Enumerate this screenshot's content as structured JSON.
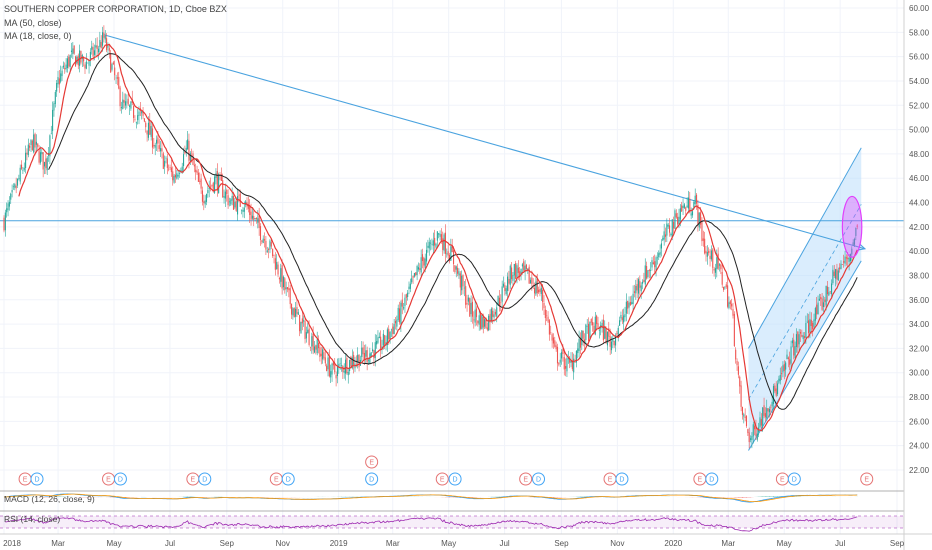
{
  "legend": {
    "title": "SOUTHERN COPPER CORPORATION, 1D, Cboe BZX",
    "ma50": "MA (50, close)",
    "ma18": "MA (18, close, 0)",
    "macd": "MACD (12, 26, close, 9)",
    "rsi": "RSI (14, close)"
  },
  "colors": {
    "up": "#26a69a",
    "down": "#ef5350",
    "ma50": "#222222",
    "ma18": "#e53935",
    "trend": "#4aa3df",
    "channel_fill": "#bbdefb",
    "circle": "#e040fb",
    "rsi": "#9c27b0",
    "earnings": "#e57373",
    "dividend": "#42a5f5"
  },
  "chart_data": {
    "type": "candlestick",
    "y_axis": {
      "ticks": [
        "22.00",
        "24.00",
        "26.00",
        "28.00",
        "30.00",
        "32.00",
        "34.00",
        "36.00",
        "38.00",
        "40.00",
        "42.00",
        "44.00",
        "46.00",
        "48.00",
        "50.00",
        "52.00",
        "54.00",
        "56.00",
        "58.00",
        "60.00"
      ],
      "range": [
        22,
        60
      ],
      "side": "right"
    },
    "x_axis": {
      "ticks": [
        "2018",
        "Mar",
        "May",
        "Jul",
        "Sep",
        "Nov",
        "2019",
        "Mar",
        "May",
        "Jul",
        "Sep",
        "Nov",
        "2020",
        "Mar",
        "May",
        "Jul",
        "Sep"
      ]
    },
    "price_path": [
      [
        "2018-01-01",
        42.5
      ],
      [
        "2018-02-01",
        49
      ],
      [
        "2018-02-15",
        47
      ],
      [
        "2018-03-01",
        54
      ],
      [
        "2018-03-15",
        56
      ],
      [
        "2018-04-01",
        55.5
      ],
      [
        "2018-04-20",
        57.5
      ],
      [
        "2018-05-10",
        52
      ],
      [
        "2018-06-01",
        51
      ],
      [
        "2018-06-20",
        48
      ],
      [
        "2018-07-05",
        46
      ],
      [
        "2018-07-20",
        48.5
      ],
      [
        "2018-08-05",
        44.5
      ],
      [
        "2018-08-20",
        46
      ],
      [
        "2018-09-05",
        44
      ],
      [
        "2018-09-20",
        44
      ],
      [
        "2018-10-05",
        42
      ],
      [
        "2018-10-20",
        40
      ],
      [
        "2018-11-05",
        36.5
      ],
      [
        "2018-11-20",
        34
      ],
      [
        "2018-12-05",
        32.5
      ],
      [
        "2018-12-25",
        30
      ],
      [
        "2019-01-15",
        31
      ],
      [
        "2019-02-01",
        31.5
      ],
      [
        "2019-02-20",
        32.5
      ],
      [
        "2019-03-10",
        35
      ],
      [
        "2019-04-01",
        39
      ],
      [
        "2019-04-20",
        41.5
      ],
      [
        "2019-05-05",
        39.5
      ],
      [
        "2019-05-25",
        35
      ],
      [
        "2019-06-10",
        34
      ],
      [
        "2019-06-25",
        36
      ],
      [
        "2019-07-10",
        38.5
      ],
      [
        "2019-07-25",
        38
      ],
      [
        "2019-08-10",
        36.5
      ],
      [
        "2019-08-25",
        31.5
      ],
      [
        "2019-09-10",
        30.5
      ],
      [
        "2019-09-25",
        33
      ],
      [
        "2019-10-10",
        34
      ],
      [
        "2019-10-25",
        32.5
      ],
      [
        "2019-11-10",
        35
      ],
      [
        "2019-11-25",
        37.5
      ],
      [
        "2019-12-10",
        39
      ],
      [
        "2019-12-25",
        41.5
      ],
      [
        "2020-01-10",
        43.5
      ],
      [
        "2020-01-25",
        44
      ],
      [
        "2020-02-05",
        40
      ],
      [
        "2020-02-20",
        38.5
      ],
      [
        "2020-03-05",
        35
      ],
      [
        "2020-03-15",
        27
      ],
      [
        "2020-03-25",
        24.5
      ],
      [
        "2020-04-10",
        27
      ],
      [
        "2020-04-25",
        29
      ],
      [
        "2020-05-10",
        32
      ],
      [
        "2020-05-25",
        33.5
      ],
      [
        "2020-06-10",
        35.5
      ],
      [
        "2020-06-25",
        38
      ],
      [
        "2020-07-10",
        39.5
      ],
      [
        "2020-07-20",
        42
      ]
    ],
    "trend_line": {
      "from": [
        "2018-04-20",
        57.8
      ],
      "to": [
        "2020-07-28",
        40.2
      ]
    },
    "horizontal_line": 42.5,
    "channel": {
      "lower": [
        [
          "2020-03-23",
          23.6
        ],
        [
          "2020-07-24",
          39.2
        ]
      ],
      "upper": [
        [
          "2020-03-23",
          32.0
        ],
        [
          "2020-07-24",
          48.5
        ]
      ]
    },
    "highlight_circle": {
      "center": [
        "2020-07-14",
        42.0
      ],
      "ry": 2.5
    },
    "events": [
      {
        "type": "E",
        "date": "2018-01-24"
      },
      {
        "type": "D",
        "date": "2018-02-06"
      },
      {
        "type": "E",
        "date": "2018-04-25"
      },
      {
        "type": "D",
        "date": "2018-05-08"
      },
      {
        "type": "E",
        "date": "2018-07-26"
      },
      {
        "type": "D",
        "date": "2018-08-08"
      },
      {
        "type": "E",
        "date": "2018-10-25"
      },
      {
        "type": "D",
        "date": "2018-11-07"
      },
      {
        "type": "D",
        "date": "2019-02-06"
      },
      {
        "type": "E",
        "date": "2019-02-06"
      },
      {
        "type": "E",
        "date": "2019-04-24"
      },
      {
        "type": "D",
        "date": "2019-05-08"
      },
      {
        "type": "E",
        "date": "2019-07-24"
      },
      {
        "type": "D",
        "date": "2019-08-07"
      },
      {
        "type": "E",
        "date": "2019-10-24"
      },
      {
        "type": "D",
        "date": "2019-11-06"
      },
      {
        "type": "E",
        "date": "2020-01-30"
      },
      {
        "type": "D",
        "date": "2020-02-12"
      },
      {
        "type": "E",
        "date": "2020-04-29"
      },
      {
        "type": "D",
        "date": "2020-05-12"
      },
      {
        "type": "E",
        "date": "2020-07-30"
      }
    ]
  }
}
